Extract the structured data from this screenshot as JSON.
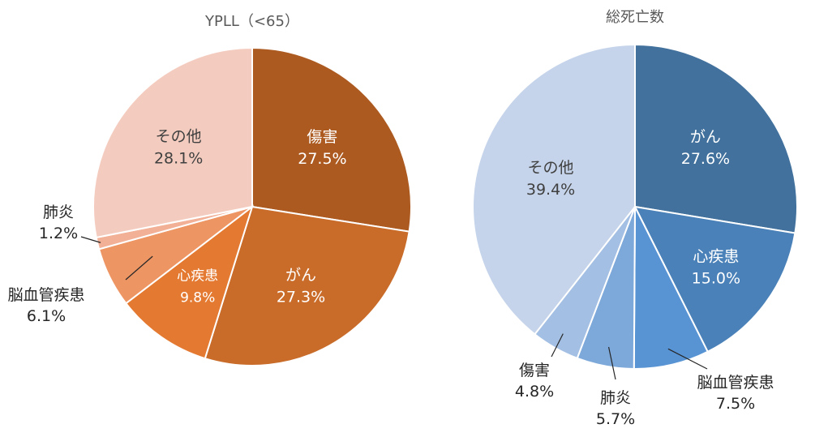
{
  "chart_data": [
    {
      "type": "pie",
      "title": "YPLL（<65）",
      "slices": [
        {
          "name": "傷害",
          "value": 27.5,
          "label_value": "27.5%",
          "color": "#AD5A21"
        },
        {
          "name": "がん",
          "value": 27.3,
          "label_value": "27.3%",
          "color": "#C96C2A"
        },
        {
          "name": "心疾患",
          "value": 9.8,
          "label_value": "9.8%",
          "color": "#E47A31"
        },
        {
          "name": "脳血管疾患",
          "value": 6.1,
          "label_value": "6.1%",
          "color": "#EE9564"
        },
        {
          "name": "肺炎",
          "value": 1.2,
          "label_value": "1.2%",
          "color": "#F2B097"
        },
        {
          "name": "その他",
          "value": 28.1,
          "label_value": "28.1%",
          "color": "#F4CCBF"
        }
      ]
    },
    {
      "type": "pie",
      "title": "総死亡数",
      "slices": [
        {
          "name": "がん",
          "value": 27.6,
          "label_value": "27.6%",
          "color": "#41719C"
        },
        {
          "name": "心疾患",
          "value": 15.0,
          "label_value": "15.0%",
          "color": "#4A81B8"
        },
        {
          "name": "脳血管疾患",
          "value": 7.5,
          "label_value": "7.5%",
          "color": "#5894D4"
        },
        {
          "name": "肺炎",
          "value": 5.7,
          "label_value": "5.7%",
          "color": "#7DA8DA"
        },
        {
          "name": "傷害",
          "value": 4.8,
          "label_value": "4.8%",
          "color": "#A3BFE3"
        },
        {
          "name": "その他",
          "value": 39.4,
          "label_value": "39.4%",
          "color": "#C5D4EA"
        }
      ]
    }
  ]
}
